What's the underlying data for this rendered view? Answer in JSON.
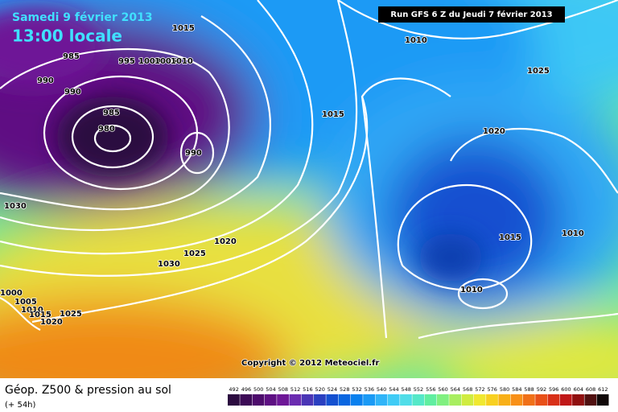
{
  "header": {
    "title": "Samedi 9 février 2013",
    "time": "13:00 locale",
    "run": "Run GFS 6 Z du Jeudi 7 février 2013"
  },
  "isobar_labels": [
    "1015",
    "1010",
    "985",
    "995",
    "1000",
    "1005",
    "1010",
    "990",
    "990",
    "985",
    "980",
    "990",
    "1015",
    "1025",
    "1020",
    "1030",
    "1020",
    "1025",
    "1030",
    "1015",
    "1010",
    "1010",
    "1000",
    "1005",
    "1010",
    "1015",
    "1020",
    "1025"
  ],
  "copyright": "Copyright © 2012 Meteociel.fr",
  "footer": {
    "title": "Géop. Z500 & pression au sol",
    "lead": "(+ 54h)"
  },
  "scale": {
    "labels": [
      492,
      496,
      500,
      504,
      508,
      512,
      516,
      520,
      524,
      528,
      532,
      536,
      540,
      544,
      548,
      552,
      556,
      560,
      564,
      568,
      572,
      576,
      580,
      584,
      588,
      592,
      596,
      600,
      604,
      608,
      612
    ],
    "colors": [
      "#2b0b3f",
      "#3c0a56",
      "#4d0c6c",
      "#5e1083",
      "#6e1797",
      "#6b2cb0",
      "#4a35b5",
      "#2a3fc0",
      "#1450d0",
      "#0a66e0",
      "#0a80ee",
      "#1a9af5",
      "#30b4f8",
      "#40cbf5",
      "#50dde8",
      "#55e8c8",
      "#60eea0",
      "#80f080",
      "#a8ee60",
      "#d0ec40",
      "#f0e830",
      "#f8d020",
      "#f8b018",
      "#f89018",
      "#f07018",
      "#e85018",
      "#d83018",
      "#c01818",
      "#901010",
      "#501010",
      "#100808"
    ]
  }
}
